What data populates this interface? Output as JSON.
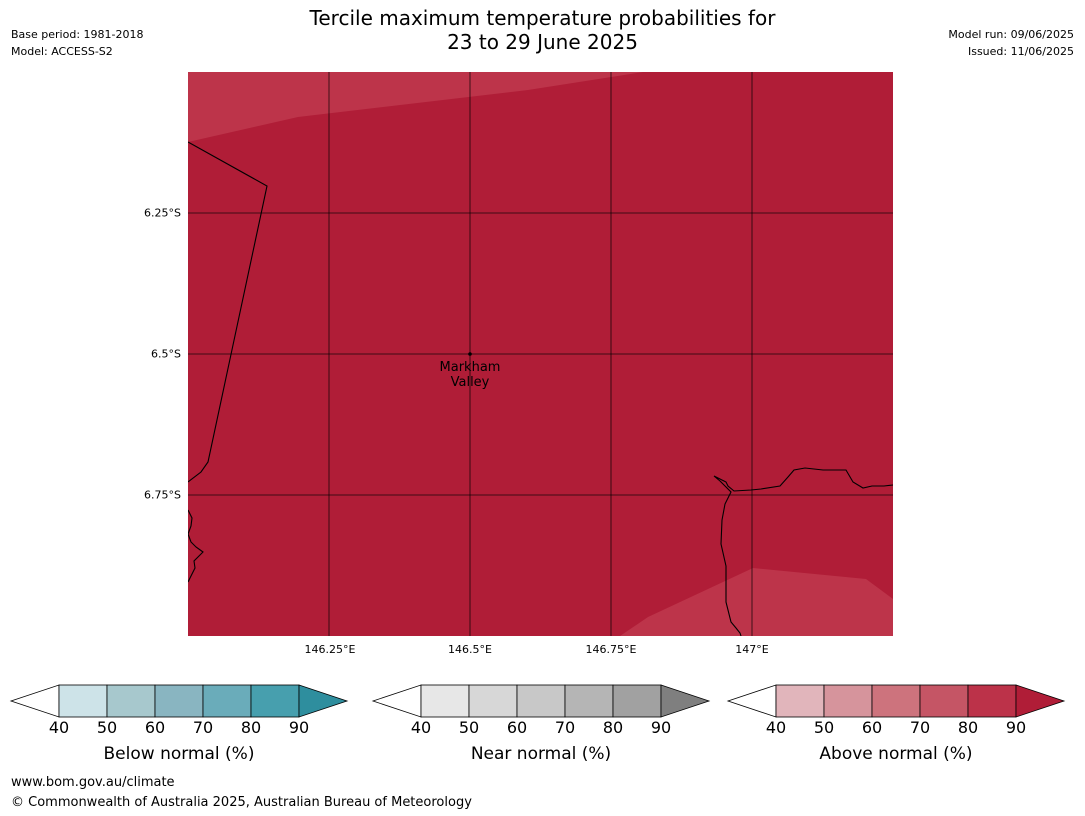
{
  "title": {
    "line1": "Tercile maximum temperature probabilities for",
    "line2": "23 to 29 June 2025"
  },
  "meta_left": {
    "base_period": "Base period: 1981-2018",
    "model": "Model: ACCESS-S2"
  },
  "meta_right": {
    "model_run": "Model run: 09/06/2025",
    "issued": "Issued: 11/06/2025"
  },
  "map": {
    "lat_labels": [
      "6.25°S",
      "6.5°S",
      "6.75°S"
    ],
    "lon_labels": [
      "146.25°E",
      "146.5°E",
      "146.75°E",
      "147°E"
    ],
    "place": {
      "line1": "Markham",
      "line2": "Valley"
    },
    "colors": {
      "fill_main": "#B01D37",
      "fill_lighter": "#BD344A",
      "grid": "#000000",
      "coastline": "#000000"
    }
  },
  "legends": [
    {
      "title": "Below normal (%)",
      "ticks": [
        "40",
        "50",
        "60",
        "70",
        "80",
        "90"
      ],
      "colors": [
        "#CDE3E8",
        "#A7C8CD",
        "#89B5C1",
        "#6AACBA",
        "#479FAE"
      ],
      "over_color": "#2E8E9E"
    },
    {
      "title": "Near normal (%)",
      "ticks": [
        "40",
        "50",
        "60",
        "70",
        "80",
        "90"
      ],
      "colors": [
        "#E7E7E7",
        "#D7D7D7",
        "#C8C8C8",
        "#B5B5B5",
        "#A1A1A1"
      ],
      "over_color": "#7F7F7F"
    },
    {
      "title": "Above normal (%)",
      "ticks": [
        "40",
        "50",
        "60",
        "70",
        "80",
        "90"
      ],
      "colors": [
        "#E1B5BB",
        "#D6949C",
        "#CD737D",
        "#C55565",
        "#BC3249"
      ],
      "over_color": "#B01D37"
    }
  ],
  "footer": {
    "url": "www.bom.gov.au/climate",
    "copyright": "© Commonwealth of Australia 2025, Australian Bureau of Meteorology"
  }
}
